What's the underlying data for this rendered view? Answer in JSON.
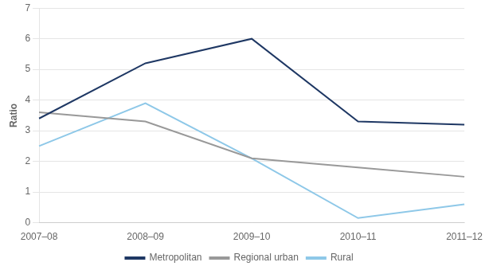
{
  "chart_data": {
    "type": "line",
    "ylabel": "Ratio",
    "categories": [
      "2007–08",
      "2008–09",
      "2009–10",
      "2010–11",
      "2011–12"
    ],
    "series": [
      {
        "name": "Metropolitan",
        "color": "#1F3864",
        "values": [
          3.4,
          5.2,
          6.0,
          3.3,
          3.2
        ]
      },
      {
        "name": "Regional urban",
        "color": "#999999",
        "values": [
          3.6,
          3.3,
          2.1,
          1.8,
          1.5
        ]
      },
      {
        "name": "Rural",
        "color": "#8ec8e8",
        "values": [
          2.5,
          3.9,
          2.1,
          0.15,
          0.6
        ]
      }
    ],
    "ylim": [
      0,
      7
    ],
    "yticks": [
      0,
      1,
      2,
      3,
      4,
      5,
      6,
      7
    ],
    "grid": true,
    "legend": "bottom"
  }
}
